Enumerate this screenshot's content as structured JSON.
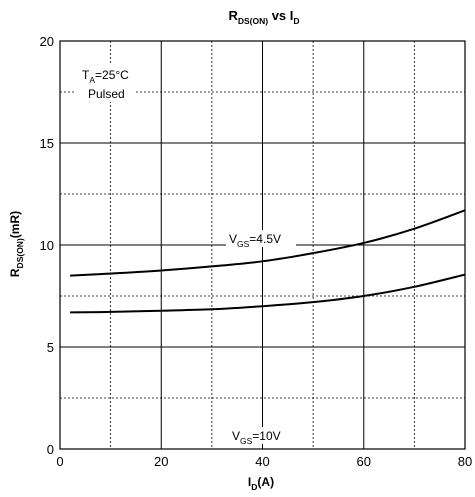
{
  "chart_data": {
    "type": "line",
    "title": {
      "main": "R",
      "sub": "DS(ON)",
      "mid": " vs I",
      "sub2": "D"
    },
    "xlabel": {
      "main": "I",
      "sub": "D",
      "rest": "(A)"
    },
    "ylabel": {
      "main": "R",
      "sub": "DS(ON)",
      "rest": "(mR)"
    },
    "xlim": [
      0,
      80
    ],
    "ylim": [
      0,
      20
    ],
    "x_ticks": [
      "0",
      "20",
      "40",
      "60",
      "80"
    ],
    "y_ticks": [
      "0",
      "5",
      "10",
      "15",
      "20"
    ],
    "x_major": [
      0,
      20,
      40,
      60,
      80
    ],
    "x_minor": [
      10,
      30,
      50,
      70
    ],
    "y_major": [
      0,
      5,
      10,
      15,
      20
    ],
    "y_minor": [
      2.5,
      7.5,
      12.5,
      17.5
    ],
    "grid": true,
    "conditions": {
      "line1": {
        "main": "T",
        "sub": "A",
        "rest": "=25°C"
      },
      "line2": "Pulsed"
    },
    "series": [
      {
        "name": "VGS=4.5V",
        "label": {
          "main": "V",
          "sub": "GS",
          "rest": "=4.5V"
        },
        "x": [
          2,
          10,
          20,
          30,
          40,
          50,
          60,
          70,
          80
        ],
        "y": [
          8.5,
          8.6,
          8.75,
          8.95,
          9.2,
          9.6,
          10.1,
          10.8,
          11.7
        ]
      },
      {
        "name": "VGS=10V",
        "label": {
          "main": "V",
          "sub": "GS",
          "rest": "=10V"
        },
        "x": [
          2,
          10,
          20,
          30,
          40,
          50,
          60,
          70,
          80
        ],
        "y": [
          6.7,
          6.72,
          6.78,
          6.85,
          7.0,
          7.2,
          7.5,
          7.95,
          8.55
        ]
      }
    ]
  }
}
